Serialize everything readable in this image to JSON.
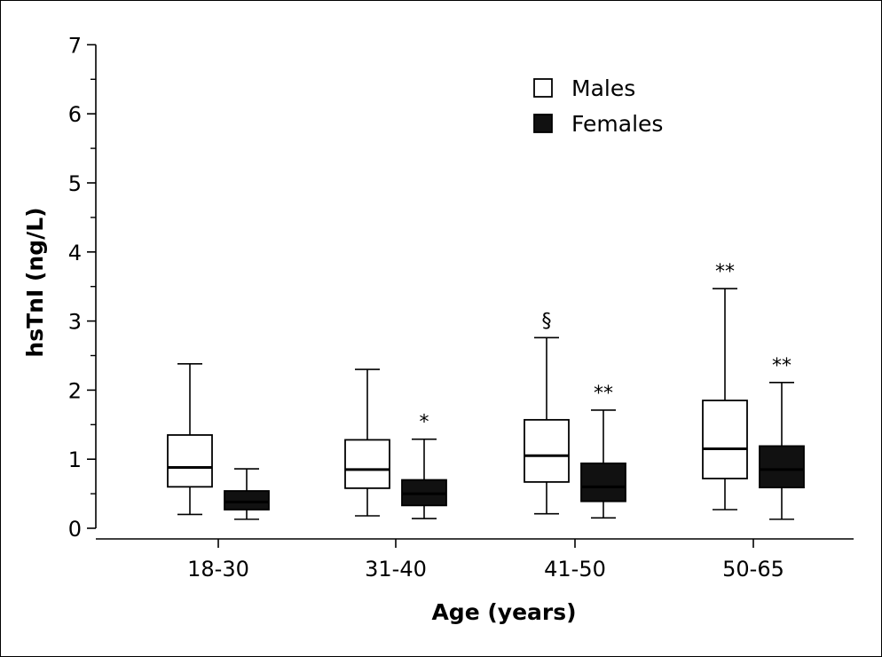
{
  "chart_data": {
    "type": "boxplot",
    "title": "",
    "xlabel": "Age (years)",
    "ylabel": "hsTnI (ng/L)",
    "ylim": [
      0,
      7
    ],
    "yticks": [
      "0",
      "1",
      "2",
      "3",
      "4",
      "5",
      "6",
      "7"
    ],
    "categories": [
      "18-30",
      "31-40",
      "41-50",
      "50-65"
    ],
    "legend": {
      "placement": "top-right"
    },
    "series": [
      {
        "name": "Males",
        "fill": "#ffffff",
        "boxes": [
          {
            "min": 0.2,
            "q1": 0.6,
            "median": 0.88,
            "q3": 1.35,
            "max": 2.38,
            "annotation": ""
          },
          {
            "min": 0.18,
            "q1": 0.58,
            "median": 0.85,
            "q3": 1.28,
            "max": 2.3,
            "annotation": ""
          },
          {
            "min": 0.21,
            "q1": 0.67,
            "median": 1.05,
            "q3": 1.57,
            "max": 2.76,
            "annotation": "§"
          },
          {
            "min": 0.27,
            "q1": 0.72,
            "median": 1.15,
            "q3": 1.85,
            "max": 3.47,
            "annotation": "**"
          }
        ]
      },
      {
        "name": "Females",
        "fill": "#111111",
        "boxes": [
          {
            "min": 0.13,
            "q1": 0.27,
            "median": 0.38,
            "q3": 0.54,
            "max": 0.86,
            "annotation": ""
          },
          {
            "min": 0.14,
            "q1": 0.33,
            "median": 0.5,
            "q3": 0.7,
            "max": 1.29,
            "annotation": "*"
          },
          {
            "min": 0.15,
            "q1": 0.39,
            "median": 0.6,
            "q3": 0.94,
            "max": 1.71,
            "annotation": "**"
          },
          {
            "min": 0.13,
            "q1": 0.59,
            "median": 0.85,
            "q3": 1.19,
            "max": 2.11,
            "annotation": "**"
          }
        ]
      }
    ]
  }
}
